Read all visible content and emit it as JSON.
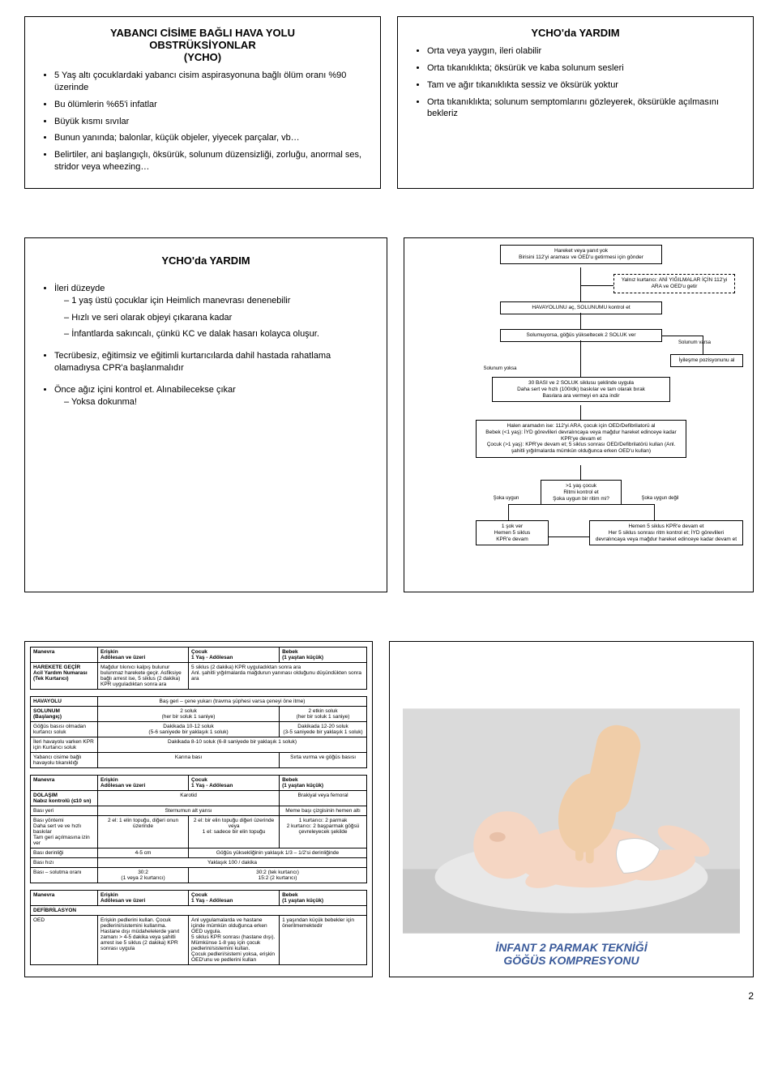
{
  "page_number": "2",
  "panel1": {
    "title_l1": "YABANCI CİSİME BAĞLI HAVA YOLU",
    "title_l2": "OBSTRÜKSİYONLAR",
    "title_l3": "(YCHO)",
    "items": [
      "5 Yaş altı çocuklardaki yabancı cisim aspirasyonuna bağlı ölüm oranı %90 üzerinde",
      "Bu ölümlerin %65'i infatlar",
      "Büyük kısmı sıvılar",
      "Bunun yanında; balonlar, küçük objeler, yiyecek parçalar, vb…",
      "Belirtiler, ani başlangıçlı, öksürük, solunum düzensizliği, zorluğu, anormal ses, stridor veya wheezing…"
    ]
  },
  "panel2": {
    "title": "YCHO'da YARDIM",
    "items": [
      "Orta veya yaygın, ileri olabilir",
      "Orta tıkanıklıkta; öksürük ve kaba solunum sesleri",
      "Tam ve ağır tıkanıklıkta sessiz ve öksürük yoktur",
      "Orta tıkanıklıkta; solunum semptomlarını gözleyerek, öksürükle açılmasını bekleriz"
    ]
  },
  "panel3": {
    "title": "YCHO'da YARDIM",
    "b1": "İleri düzeyde",
    "b1_sub": [
      "1 yaş üstü çocuklar için Heimlich manevrası denenebilir",
      "Hızlı ve seri olarak objeyi çıkarana kadar",
      "İnfantlarda sakıncalı, çünkü KC ve dalak hasarı kolayca oluşur."
    ],
    "b2": "Tecrübesiz, eğitimsiz ve eğitimli kurtarıcılarda dahil hastada rahatlama olamadıysa CPR'a başlanmalıdır",
    "b3": "Önce ağız içini kontrol et. Alınabilecekse çıkar",
    "b3_sub": [
      "Yoksa dokunma!"
    ]
  },
  "flow": {
    "n1": "Hareket veya yanıt yok\nBirisini 112'yi araması ve OED'u getirmesi için gönder",
    "n2": "Yalnız kurtarıcı: ANİ YIĞILMALAR İÇİN 112'yi ARA ve OED'u getir",
    "n3": "HAVAYOLUNU aç, SOLUNUMU kontrol et",
    "n4": "Solumuyorsa, göğüs yükseltecek 2 SOLUK ver",
    "n5a": "Solunum varsa",
    "n5b": "İyileşme pozisyonunu al",
    "n5c": "Solunum yoksa",
    "n6": "30 BASI ve 2 SOLUK siklusu şeklinde uygula\nDaha sert ve hızlı (100/dk) baskılar ve tam olarak bırak\nBasılara ara vermeyi en aza indir",
    "n7": "Halen aramadın ise: 112'yi ARA, çocuk için OED/Defibrilatorü al\nBebek (<1 yaş): İYD görevlileri devralıncaya veya mağdur hareket edinceye kadar KPR'ye devam et\nÇocuk (>1 yaş): KPR'ye devam et; 5 siklus sonrası OED/Defibrilatörü kullan (Anl. şahitli yığılmalarda mümkün olduğunca erken OED'u kullan)",
    "n8": ">1 yaş çocuk\nRitmi kontrol et\nŞoka uygun bir ritim mi?",
    "n8_left": "Şoka uygun",
    "n8_right": "Şoka uygun değil",
    "n9": "1 şok ver\nHemen 5 siklus\nKPR'e devam",
    "n10": "Hemen 5 siklus KPR'e devam et\nHer 5 siklus sonrası ritm kontrol et; İYD görevlileri devralıncaya veya mağdur hareket edinceye kadar devam et"
  },
  "tables": {
    "cols": [
      "Manevra",
      "Erişkin\nAdölesan ve üzeri",
      "Çocuk\n1 Yaş - Adölesan",
      "Bebek\n(1 yaştan küçük)"
    ],
    "t1": [
      [
        "HAREKETE GEÇİR\nAcil Yardım Numarası (Tek Kurtarıcı)",
        "Mağdur tıkınıcı kalpış bulunur bulunmaz harekete geçir. Asfiksiye bağlı arrest ise, 5 siklus (2 dakika) KPR uyguladıktan sonra ara",
        "5 siklus (2 dakika) KPR uyguladıktan sonra ara\nAnl. şahitli yığılmalarda mağdurun yanınası olduğunu düşündükten sonra ara",
        ""
      ]
    ],
    "t2": [
      [
        "HAVAYOLU",
        "Baş geri – çene yukarı (travma şüphesi varsa çeneyi öne itme)",
        "",
        ""
      ],
      [
        "SOLUNUM\n(Başlangıç)",
        "2 soluk\n(her bir soluk 1 saniye)",
        "",
        "2 etkin soluk\n(her bir soluk 1 saniye)"
      ],
      [
        "Göğüs basısı olmadan kurtarıcı soluk",
        "Dakikada 10-12 soluk\n(5-6 saniyede bir yaklaşık 1 soluk)",
        "",
        "Dakikada 12-20 soluk\n(3-5 saniyede bir yaklaşık 1 soluk)"
      ],
      [
        "İleri havayolu varken KPR için Kurtarıcı soluk",
        "Dakikada 8-10 soluk (6-8 saniyede bir yaklaşık 1 soluk)",
        "",
        ""
      ],
      [
        "Yabancı cisime bağlı havayolu tıkanıklığı",
        "Karına bası",
        "",
        "Sırta vurma ve göğüs basısı"
      ]
    ],
    "t3": [
      [
        "DOLAŞIM\nNabız kontrolü (≤10 sn)",
        "Karotid",
        "",
        "Brakiyal veya femoral"
      ],
      [
        "Bası yeri",
        "Sternumun alt yarısı",
        "",
        "Meme başı çizgisinin hemen altı"
      ],
      [
        "Bası yöntemi\nDaha sert ve ve hızlı baskılar\nTam geri açılmasına izin ver",
        "2 el: 1 elin topuğu, diğeri onun üzerinde",
        "2 el: bir elin topuğu diğeri üzerinde veya\n1 el: sadece bir elin topuğu",
        "1 kurtarıcı: 2 parmak\n2 kurtarıcı: 2 başparmak göğsü çevreleyecek şekilde"
      ],
      [
        "Bası derinliği",
        "4-5 cm",
        "Göğüs yüksekliğinin yaklaşık 1/3 – 1/2'si derinliğinde",
        ""
      ],
      [
        "Bası hızı",
        "Yaklaşık 100 / dakika",
        "",
        ""
      ],
      [
        "Bası – solutma oranı",
        "30:2\n(1 veya 2 kurtarıcı)",
        "",
        "30:2 (tek kurtarıcı)\n15:2 (2 kurtarıcı)"
      ]
    ],
    "t4": [
      [
        "DEFİBRİLASYON",
        "",
        "",
        ""
      ],
      [
        "OED",
        "Erişkin pedlerini kullan. Çocuk pedlerini/sistemini kullanma.\nHastane dışı müdahelelerde yanıt zamanı > 4-5 dakika veya şahitli arrest ise 5 siklus (2 dakika) KPR sonrası uygula",
        "Anl uygulamalarda ve hastane içinde mümkün olduğunca erken OED uygula.\n5 siklus KPR sonrası (hastane dışı). Mümkünse 1-8 yaş için çocuk pedlerini/sistemini kullan.\nÇocuk pedleri/sistemi yoksa, erişkin OED'unu ve pedlerini kullan",
        "1 yaşından küçük bebekler için önerilmemektedir"
      ]
    ]
  },
  "infant_caption_l1": "İNFANT 2 PARMAK TEKNİĞİ",
  "infant_caption_l2": "GÖĞÜS KOMPRESYONU",
  "colors": {
    "border": "#000000",
    "caption": "#3a5a9a",
    "skin": "#f5d6c3",
    "skin_shadow": "#e8c0a8",
    "cloth": "#e8e8e8",
    "hand": "#f0cda8",
    "bg": "#dadada"
  }
}
